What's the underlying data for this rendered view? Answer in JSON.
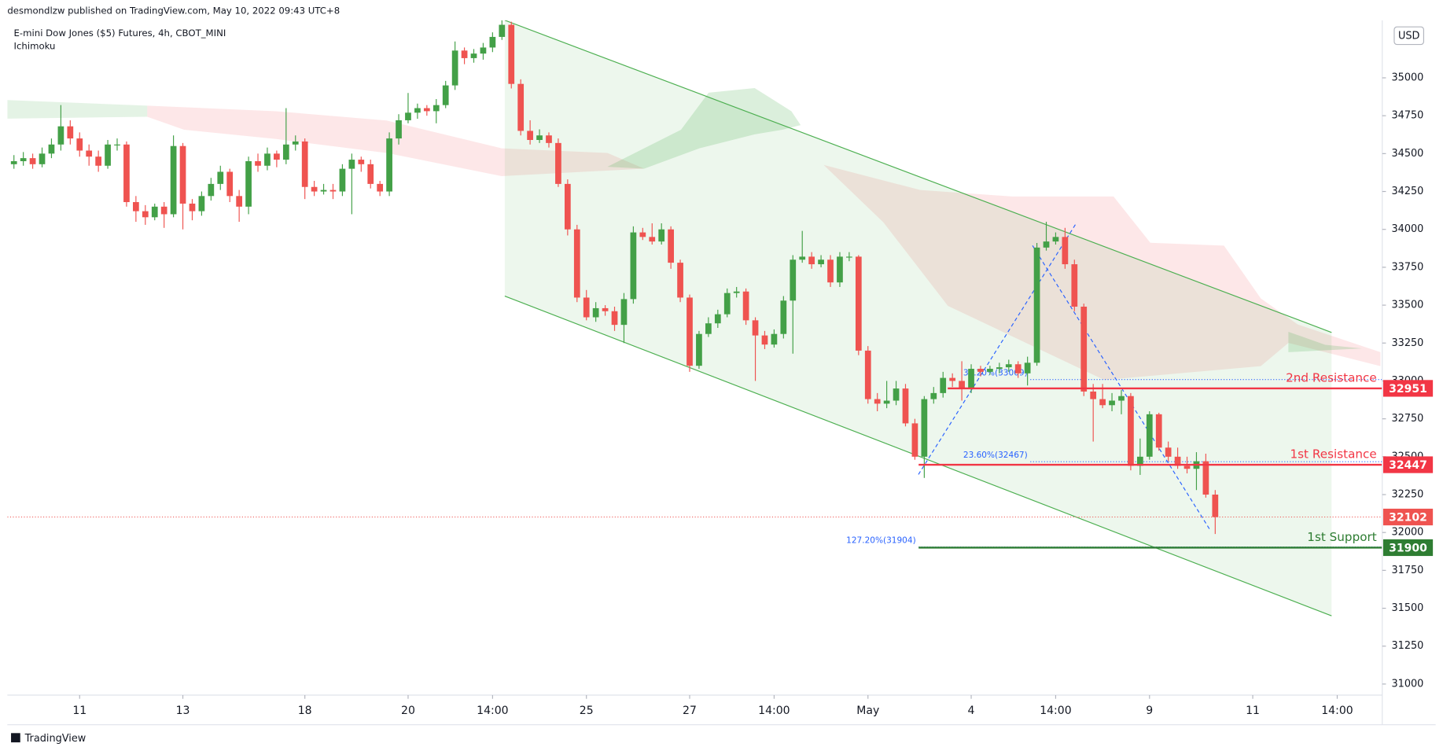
{
  "header": "desmondlzw published on TradingView.com, May 10, 2022 09:43 UTC+8",
  "footer": "TradingView",
  "chart_data": {
    "type": "candlestick",
    "title": "E-mini Dow Jones ($5) Futures, 4h, CBOT_MINI",
    "subtitle": "Ichimoku",
    "currency": "USD",
    "up_color": "#43a047",
    "down_color": "#ef5350",
    "ylim": [
      30927,
      35379
    ],
    "xlim": [
      -0.7,
      145.8
    ],
    "yticks": [
      31000,
      31250,
      31500,
      31750,
      32000,
      32250,
      32500,
      32750,
      33000,
      33250,
      33500,
      33750,
      34000,
      34250,
      34500,
      34750,
      35000
    ],
    "xticks": [
      {
        "value": 7,
        "label": "11"
      },
      {
        "value": 18,
        "label": "13"
      },
      {
        "value": 31,
        "label": "18"
      },
      {
        "value": 42,
        "label": "20"
      },
      {
        "value": 51,
        "label": "14:00"
      },
      {
        "value": 61,
        "label": "25"
      },
      {
        "value": 72,
        "label": "27"
      },
      {
        "value": 81,
        "label": "14:00"
      },
      {
        "value": 91,
        "label": "May"
      },
      {
        "value": 102,
        "label": "4"
      },
      {
        "value": 111,
        "label": "14:00"
      },
      {
        "value": 121,
        "label": "9"
      },
      {
        "value": 132,
        "label": "11"
      },
      {
        "value": 141,
        "label": "14:00"
      }
    ],
    "ohlc": [
      [
        34430,
        34490,
        34400,
        34450
      ],
      [
        34450,
        34510,
        34420,
        34470
      ],
      [
        34470,
        34500,
        34400,
        34430
      ],
      [
        34430,
        34540,
        34410,
        34500
      ],
      [
        34500,
        34600,
        34470,
        34560
      ],
      [
        34560,
        34820,
        34520,
        34680
      ],
      [
        34680,
        34720,
        34560,
        34600
      ],
      [
        34600,
        34640,
        34480,
        34520
      ],
      [
        34520,
        34560,
        34420,
        34480
      ],
      [
        34480,
        34520,
        34380,
        34420
      ],
      [
        34420,
        34590,
        34400,
        34560
      ],
      [
        34560,
        34600,
        34520,
        34560
      ],
      [
        34560,
        34580,
        34150,
        34180
      ],
      [
        34180,
        34220,
        34050,
        34120
      ],
      [
        34120,
        34160,
        34030,
        34080
      ],
      [
        34080,
        34170,
        34060,
        34150
      ],
      [
        34150,
        34180,
        34010,
        34100
      ],
      [
        34100,
        34620,
        34080,
        34550
      ],
      [
        34550,
        34570,
        34000,
        34170
      ],
      [
        34170,
        34200,
        34060,
        34120
      ],
      [
        34120,
        34250,
        34090,
        34220
      ],
      [
        34220,
        34340,
        34190,
        34300
      ],
      [
        34300,
        34420,
        34260,
        34380
      ],
      [
        34380,
        34400,
        34180,
        34220
      ],
      [
        34220,
        34260,
        34050,
        34150
      ],
      [
        34150,
        34480,
        34100,
        34450
      ],
      [
        34450,
        34500,
        34380,
        34420
      ],
      [
        34420,
        34540,
        34390,
        34500
      ],
      [
        34500,
        34520,
        34410,
        34460
      ],
      [
        34460,
        34800,
        34430,
        34560
      ],
      [
        34560,
        34620,
        34520,
        34580
      ],
      [
        34580,
        34600,
        34200,
        34280
      ],
      [
        34280,
        34320,
        34220,
        34250
      ],
      [
        34250,
        34300,
        34230,
        34260
      ],
      [
        34260,
        34300,
        34200,
        34250
      ],
      [
        34250,
        34430,
        34220,
        34400
      ],
      [
        34400,
        34500,
        34100,
        34460
      ],
      [
        34460,
        34480,
        34380,
        34430
      ],
      [
        34430,
        34460,
        34270,
        34300
      ],
      [
        34300,
        34320,
        34220,
        34250
      ],
      [
        34250,
        34640,
        34220,
        34600
      ],
      [
        34600,
        34760,
        34560,
        34720
      ],
      [
        34720,
        34900,
        34700,
        34770
      ],
      [
        34770,
        34830,
        34730,
        34800
      ],
      [
        34800,
        34820,
        34750,
        34780
      ],
      [
        34780,
        34860,
        34700,
        34820
      ],
      [
        34820,
        34980,
        34800,
        34950
      ],
      [
        34950,
        35240,
        34920,
        35180
      ],
      [
        35180,
        35200,
        35090,
        35130
      ],
      [
        35130,
        35190,
        35100,
        35160
      ],
      [
        35160,
        35230,
        35120,
        35200
      ],
      [
        35200,
        35300,
        35170,
        35270
      ],
      [
        35270,
        35400,
        35250,
        35350
      ],
      [
        35350,
        35370,
        34930,
        34960
      ],
      [
        34960,
        34990,
        34620,
        34650
      ],
      [
        34650,
        34720,
        34560,
        34590
      ],
      [
        34590,
        34660,
        34570,
        34620
      ],
      [
        34620,
        34640,
        34540,
        34570
      ],
      [
        34570,
        34600,
        34280,
        34300
      ],
      [
        34300,
        34330,
        33960,
        34000
      ],
      [
        34000,
        34030,
        33520,
        33550
      ],
      [
        33550,
        33600,
        33400,
        33420
      ],
      [
        33420,
        33520,
        33390,
        33480
      ],
      [
        33480,
        33500,
        33430,
        33460
      ],
      [
        33460,
        33490,
        33330,
        33370
      ],
      [
        33370,
        33580,
        33250,
        33540
      ],
      [
        33540,
        34020,
        33510,
        33980
      ],
      [
        33980,
        34010,
        33930,
        33950
      ],
      [
        33950,
        34040,
        33900,
        33920
      ],
      [
        33920,
        34040,
        33900,
        34000
      ],
      [
        34000,
        34020,
        33740,
        33780
      ],
      [
        33780,
        33800,
        33520,
        33550
      ],
      [
        33550,
        33570,
        33060,
        33100
      ],
      [
        33100,
        33330,
        33080,
        33310
      ],
      [
        33310,
        33420,
        33290,
        33380
      ],
      [
        33380,
        33470,
        33350,
        33440
      ],
      [
        33440,
        33610,
        33420,
        33580
      ],
      [
        33580,
        33620,
        33550,
        33590
      ],
      [
        33590,
        33610,
        33370,
        33400
      ],
      [
        33400,
        33420,
        33000,
        33300
      ],
      [
        33300,
        33330,
        33210,
        33240
      ],
      [
        33240,
        33340,
        33220,
        33310
      ],
      [
        33310,
        33560,
        33280,
        33530
      ],
      [
        33530,
        33830,
        33180,
        33800
      ],
      [
        33800,
        33990,
        33780,
        33820
      ],
      [
        33820,
        33850,
        33740,
        33770
      ],
      [
        33770,
        33830,
        33750,
        33800
      ],
      [
        33800,
        33830,
        33620,
        33650
      ],
      [
        33650,
        33850,
        33620,
        33820
      ],
      [
        33820,
        33850,
        33790,
        33820
      ],
      [
        33820,
        33830,
        33170,
        33200
      ],
      [
        33200,
        33230,
        32850,
        32880
      ],
      [
        32880,
        32920,
        32800,
        32850
      ],
      [
        32850,
        33000,
        32820,
        32870
      ],
      [
        32870,
        33000,
        32840,
        32950
      ],
      [
        32950,
        32980,
        32700,
        32720
      ],
      [
        32720,
        32750,
        32480,
        32500
      ],
      [
        32500,
        32900,
        32360,
        32880
      ],
      [
        32880,
        32960,
        32850,
        32920
      ],
      [
        32920,
        33060,
        32890,
        33020
      ],
      [
        33020,
        33050,
        32960,
        33000
      ],
      [
        33000,
        33130,
        32870,
        32950
      ],
      [
        32950,
        33110,
        32920,
        33080
      ],
      [
        33080,
        33100,
        33030,
        33060
      ],
      [
        33060,
        33100,
        33040,
        33080
      ],
      [
        33080,
        33120,
        33050,
        33090
      ],
      [
        33090,
        33140,
        33060,
        33110
      ],
      [
        33110,
        33130,
        33020,
        33050
      ],
      [
        33050,
        33160,
        32970,
        33120
      ],
      [
        33120,
        33910,
        33100,
        33880
      ],
      [
        33880,
        34050,
        33860,
        33920
      ],
      [
        33920,
        33980,
        33900,
        33950
      ],
      [
        33950,
        34010,
        33740,
        33770
      ],
      [
        33770,
        33800,
        33460,
        33490
      ],
      [
        33490,
        33510,
        32900,
        32930
      ],
      [
        32930,
        32980,
        32600,
        32880
      ],
      [
        32880,
        32980,
        32820,
        32840
      ],
      [
        32840,
        32920,
        32800,
        32870
      ],
      [
        32870,
        32940,
        32780,
        32900
      ],
      [
        32900,
        32920,
        32410,
        32440
      ],
      [
        32440,
        32620,
        32380,
        32500
      ],
      [
        32500,
        32800,
        32480,
        32780
      ],
      [
        32780,
        32790,
        32540,
        32560
      ],
      [
        32560,
        32600,
        32470,
        32500
      ],
      [
        32500,
        32560,
        32420,
        32440
      ],
      [
        32440,
        32500,
        32390,
        32420
      ],
      [
        32420,
        32530,
        32280,
        32470
      ],
      [
        32470,
        32520,
        32230,
        32250
      ],
      [
        32250,
        32280,
        31990,
        32102
      ]
    ],
    "channel": {
      "x": [
        52.3,
        140.4
      ],
      "upper": [
        35380,
        33320
      ],
      "lower": [
        33560,
        31450
      ],
      "color": "#4caf50"
    },
    "levels": [
      {
        "label": "2nd Resistance",
        "value": 32951,
        "color": "#f23645",
        "from": 99.5
      },
      {
        "label": "1st Resistance",
        "value": 32447,
        "color": "#f23645",
        "from": 96.4
      },
      {
        "label": "1st Support",
        "value": 31900,
        "color": "#2e7d32",
        "from": 96.4
      }
    ],
    "fib": [
      {
        "label": "38.20%(33009)",
        "value": 33009,
        "from": 108.3
      },
      {
        "label": "23.60%(32467)",
        "value": 32467,
        "from": 108.3
      },
      {
        "label": "127.20%(31904)",
        "value": 31904,
        "from": 96.4
      }
    ],
    "fib_color": "#2962ff",
    "last_price": 32102
  }
}
